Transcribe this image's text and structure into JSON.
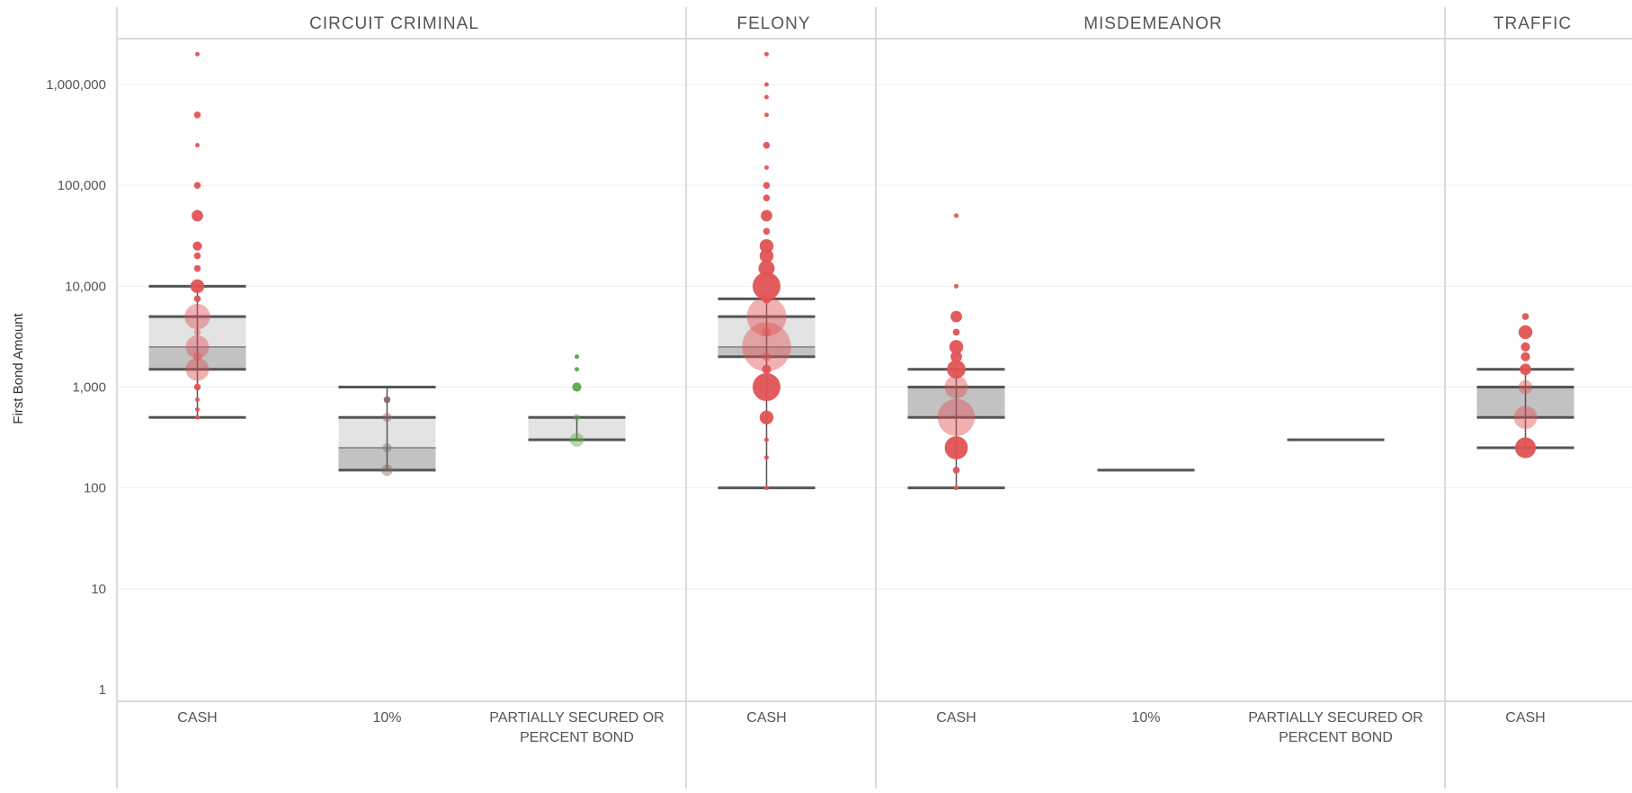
{
  "chart_data": {
    "type": "box-plot with sized dots",
    "ylabel": "First Bond Amount",
    "yscale": "log",
    "ylim": [
      1,
      3000000
    ],
    "yticks": [
      1,
      10,
      100,
      1000,
      10000,
      100000,
      1000000
    ],
    "ytick_labels": [
      "1",
      "10",
      "100",
      "1,000",
      "10,000",
      "100,000",
      "1,000,000"
    ],
    "colors": {
      "cash": "#e05355",
      "ten_percent": "#8a6d62",
      "partially_secured": "#5aa84a",
      "box_upper": "#e3e3e3",
      "box_lower": "#c2c2c2",
      "whisker": "#555555"
    },
    "panels": [
      {
        "title": "CIRCUIT CRIMINAL",
        "categories": [
          {
            "label": "CASH",
            "color": "cash",
            "box": {
              "whisker_low": 500,
              "q1": 1500,
              "median": 2500,
              "q3": 5000,
              "whisker_high": 10000
            },
            "points": [
              [
                2000000,
                1
              ],
              [
                500000,
                2
              ],
              [
                250000,
                1
              ],
              [
                100000,
                2
              ],
              [
                50000,
                4
              ],
              [
                25000,
                3
              ],
              [
                20000,
                2
              ],
              [
                15000,
                2
              ],
              [
                10000,
                5
              ],
              [
                7500,
                2
              ],
              [
                5000,
                10
              ],
              [
                3500,
                2
              ],
              [
                2500,
                9
              ],
              [
                2000,
                3
              ],
              [
                1500,
                9
              ],
              [
                1000,
                2
              ],
              [
                750,
                1
              ],
              [
                600,
                1
              ],
              [
                500,
                1
              ]
            ]
          },
          {
            "label": "10%",
            "color": "ten_percent",
            "box": {
              "whisker_low": 150,
              "q1": 150,
              "median": 250,
              "q3": 500,
              "whisker_high": 1000
            },
            "points": [
              [
                750,
                2
              ],
              [
                500,
                3
              ],
              [
                250,
                3
              ],
              [
                150,
                4
              ]
            ]
          },
          {
            "label": "PARTIALLY SECURED OR PERCENT BOND",
            "color": "partially_secured",
            "box": {
              "whisker_low": 300,
              "q1": 300,
              "median": 300,
              "q3": 500,
              "whisker_high": 500
            },
            "points": [
              [
                2000,
                1
              ],
              [
                1500,
                1
              ],
              [
                1000,
                3
              ],
              [
                500,
                2
              ],
              [
                300,
                5
              ]
            ]
          }
        ]
      },
      {
        "title": "FELONY",
        "categories": [
          {
            "label": "CASH",
            "color": "cash",
            "box": {
              "whisker_low": 100,
              "q1": 2000,
              "median": 2500,
              "q3": 5000,
              "whisker_high": 7500
            },
            "points": [
              [
                2000000,
                1
              ],
              [
                1000000,
                1
              ],
              [
                750000,
                1
              ],
              [
                500000,
                1
              ],
              [
                250000,
                2
              ],
              [
                150000,
                1
              ],
              [
                100000,
                2
              ],
              [
                75000,
                2
              ],
              [
                50000,
                4
              ],
              [
                35000,
                2
              ],
              [
                25000,
                5
              ],
              [
                20000,
                5
              ],
              [
                15000,
                6
              ],
              [
                10000,
                11
              ],
              [
                7500,
                3
              ],
              [
                5000,
                16
              ],
              [
                3500,
                3
              ],
              [
                2500,
                20
              ],
              [
                2000,
                3
              ],
              [
                1500,
                3
              ],
              [
                1000,
                11
              ],
              [
                500,
                5
              ],
              [
                300,
                1
              ],
              [
                200,
                1
              ],
              [
                100,
                1
              ]
            ]
          }
        ]
      },
      {
        "title": "MISDEMEANOR",
        "categories": [
          {
            "label": "CASH",
            "color": "cash",
            "box": {
              "whisker_low": 100,
              "q1": 500,
              "median": 1000,
              "q3": 1000,
              "whisker_high": 1500
            },
            "points": [
              [
                50000,
                1
              ],
              [
                10000,
                1
              ],
              [
                5000,
                4
              ],
              [
                3500,
                2
              ],
              [
                2500,
                5
              ],
              [
                2000,
                4
              ],
              [
                1500,
                7
              ],
              [
                1000,
                9
              ],
              [
                500,
                15
              ],
              [
                250,
                9
              ],
              [
                150,
                2
              ],
              [
                100,
                1
              ]
            ]
          },
          {
            "label": "10%",
            "color": "ten_percent",
            "box": {
              "whisker_low": 150,
              "q1": 150,
              "median": 150,
              "q3": 150,
              "whisker_high": 150
            },
            "points": []
          },
          {
            "label": "PARTIALLY SECURED OR PERCENT BOND",
            "color": "partially_secured",
            "box": {
              "whisker_low": 300,
              "q1": 300,
              "median": 300,
              "q3": 300,
              "whisker_high": 300
            },
            "points": []
          }
        ]
      },
      {
        "title": "TRAFFIC",
        "categories": [
          {
            "label": "CASH",
            "color": "cash",
            "box": {
              "whisker_low": 250,
              "q1": 500,
              "median": 1000,
              "q3": 1000,
              "whisker_high": 1500
            },
            "points": [
              [
                5000,
                2
              ],
              [
                3500,
                5
              ],
              [
                2500,
                3
              ],
              [
                2000,
                3
              ],
              [
                1500,
                4
              ],
              [
                1000,
                5
              ],
              [
                500,
                9
              ],
              [
                250,
                8
              ]
            ]
          }
        ]
      }
    ]
  }
}
